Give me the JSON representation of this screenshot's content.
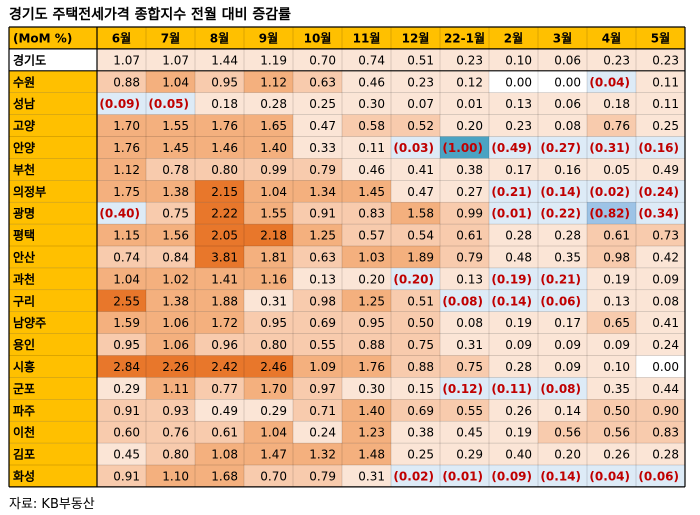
{
  "title": "경기도 주택전세가격 종합지수 전월 대비 증감률",
  "source": "자료: KB부동산",
  "colors": {
    "header_fill": "#ffc000",
    "negative_text": "#c00000",
    "highest": "#e8772b",
    "high": "#f4b07e",
    "mid": "#f8cbad",
    "low": "#fbe5d6",
    "neutral": "#ffffff",
    "negative_light": "#ddebf7",
    "negative_mid": "#9dc3e6",
    "negative_strong": "#4ba3c3"
  },
  "chart_data": {
    "type": "heatmap",
    "title": "경기도 주택전세가격 종합지수 전월 대비 증감률",
    "corner_label": "(MoM %)",
    "columns": [
      "6월",
      "7월",
      "8월",
      "9월",
      "10월",
      "11월",
      "12월",
      "22-1월",
      "2월",
      "3월",
      "4월",
      "5월"
    ],
    "rows": [
      {
        "name": "경기도",
        "values": [
          1.07,
          1.07,
          1.44,
          1.19,
          0.7,
          0.74,
          0.51,
          0.23,
          0.1,
          0.06,
          0.23,
          0.23
        ]
      },
      {
        "name": "수원",
        "values": [
          0.88,
          1.04,
          0.95,
          1.12,
          0.63,
          0.46,
          0.23,
          0.12,
          0.0,
          0.0,
          -0.04,
          0.11
        ]
      },
      {
        "name": "성남",
        "values": [
          -0.09,
          -0.05,
          0.18,
          0.28,
          0.25,
          0.3,
          0.07,
          0.01,
          0.13,
          0.06,
          0.18,
          0.11
        ]
      },
      {
        "name": "고양",
        "values": [
          1.7,
          1.55,
          1.76,
          1.65,
          0.47,
          0.58,
          0.52,
          0.2,
          0.23,
          0.08,
          0.76,
          0.25
        ]
      },
      {
        "name": "안양",
        "values": [
          1.76,
          1.45,
          1.46,
          1.4,
          0.33,
          0.11,
          -0.03,
          -1.0,
          -0.49,
          -0.27,
          -0.31,
          -0.16
        ]
      },
      {
        "name": "부천",
        "values": [
          1.12,
          0.78,
          0.8,
          0.99,
          0.79,
          0.46,
          0.41,
          0.38,
          0.17,
          0.16,
          0.05,
          0.49
        ]
      },
      {
        "name": "의정부",
        "values": [
          1.75,
          1.38,
          2.15,
          1.04,
          1.34,
          1.45,
          0.47,
          0.27,
          -0.21,
          -0.14,
          -0.02,
          -0.24
        ]
      },
      {
        "name": "광명",
        "values": [
          -0.4,
          0.75,
          2.22,
          1.55,
          0.91,
          0.83,
          1.58,
          0.99,
          -0.01,
          -0.22,
          -0.82,
          -0.34
        ]
      },
      {
        "name": "평택",
        "values": [
          1.15,
          1.56,
          2.05,
          2.18,
          1.25,
          0.57,
          0.54,
          0.61,
          0.28,
          0.28,
          0.61,
          0.73
        ]
      },
      {
        "name": "안산",
        "values": [
          0.74,
          0.84,
          3.81,
          1.81,
          0.63,
          1.03,
          1.89,
          0.79,
          0.48,
          0.35,
          0.98,
          0.42
        ]
      },
      {
        "name": "과천",
        "values": [
          1.04,
          1.02,
          1.41,
          1.16,
          0.13,
          0.2,
          -0.2,
          0.13,
          -0.19,
          -0.21,
          0.19,
          0.09
        ]
      },
      {
        "name": "구리",
        "values": [
          2.55,
          1.38,
          1.88,
          0.31,
          0.98,
          1.25,
          0.51,
          -0.08,
          -0.14,
          -0.06,
          0.13,
          0.08
        ]
      },
      {
        "name": "남양주",
        "values": [
          1.59,
          1.06,
          1.72,
          0.95,
          0.69,
          0.95,
          0.5,
          0.08,
          0.19,
          0.17,
          0.65,
          0.41
        ]
      },
      {
        "name": "용인",
        "values": [
          0.95,
          1.06,
          0.96,
          0.8,
          0.55,
          0.88,
          0.75,
          0.31,
          0.09,
          0.09,
          0.09,
          0.24
        ]
      },
      {
        "name": "시흥",
        "values": [
          2.84,
          2.26,
          2.42,
          2.46,
          1.09,
          1.76,
          0.88,
          0.75,
          0.28,
          0.09,
          0.1,
          0.0
        ]
      },
      {
        "name": "군포",
        "values": [
          0.29,
          1.11,
          0.77,
          1.7,
          0.97,
          0.3,
          0.15,
          -0.12,
          -0.11,
          -0.08,
          0.35,
          0.44
        ]
      },
      {
        "name": "파주",
        "values": [
          0.91,
          0.93,
          0.49,
          0.29,
          0.71,
          1.4,
          0.69,
          0.55,
          0.26,
          0.14,
          0.5,
          0.9
        ]
      },
      {
        "name": "이천",
        "values": [
          0.6,
          0.76,
          0.61,
          1.04,
          0.24,
          1.23,
          0.38,
          0.45,
          0.19,
          0.56,
          0.56,
          0.83
        ]
      },
      {
        "name": "김포",
        "values": [
          0.45,
          0.8,
          1.08,
          1.47,
          1.32,
          1.48,
          0.25,
          0.29,
          0.4,
          0.2,
          0.26,
          0.28
        ]
      },
      {
        "name": "화성",
        "values": [
          0.91,
          1.1,
          1.68,
          0.7,
          0.79,
          0.31,
          -0.02,
          -0.01,
          -0.09,
          -0.14,
          -0.04,
          -0.06
        ]
      }
    ]
  }
}
